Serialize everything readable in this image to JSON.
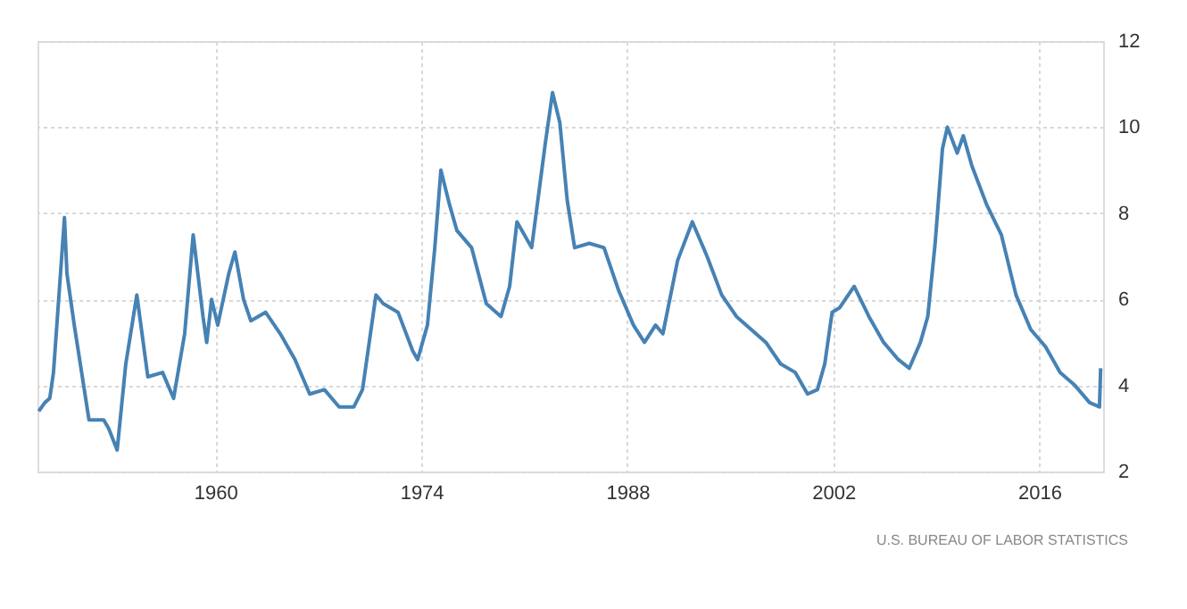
{
  "chart_data": {
    "type": "line",
    "x": [
      "1948-01",
      "1948-06",
      "1948-10",
      "1949-01",
      "1949-10",
      "1949-12",
      "1950-06",
      "1950-12",
      "1951-06",
      "1952-06",
      "1952-10",
      "1953-05",
      "1953-12",
      "1954-09",
      "1955-06",
      "1956-06",
      "1957-03",
      "1957-12",
      "1958-07",
      "1959-03",
      "1959-06",
      "1959-10",
      "1960-03",
      "1960-12",
      "1961-05",
      "1961-12",
      "1962-06",
      "1963-06",
      "1964-06",
      "1965-06",
      "1966-06",
      "1967-06",
      "1968-06",
      "1969-06",
      "1970-01",
      "1970-12",
      "1971-06",
      "1972-06",
      "1973-06",
      "1973-10",
      "1974-06",
      "1974-12",
      "1975-05",
      "1975-12",
      "1976-06",
      "1977-06",
      "1978-06",
      "1979-06",
      "1980-01",
      "1980-07",
      "1981-01",
      "1981-07",
      "1982-06",
      "1982-12",
      "1983-06",
      "1983-12",
      "1984-06",
      "1985-06",
      "1986-06",
      "1987-06",
      "1988-06",
      "1989-03",
      "1989-12",
      "1990-06",
      "1991-06",
      "1992-06",
      "1993-06",
      "1994-06",
      "1995-06",
      "1996-06",
      "1997-06",
      "1998-06",
      "1999-06",
      "2000-04",
      "2000-12",
      "2001-06",
      "2001-12",
      "2002-06",
      "2003-06",
      "2004-06",
      "2005-06",
      "2006-06",
      "2007-03",
      "2007-12",
      "2008-06",
      "2008-12",
      "2009-06",
      "2009-10",
      "2010-06",
      "2010-11",
      "2011-06",
      "2012-06",
      "2013-06",
      "2014-06",
      "2015-06",
      "2016-06",
      "2017-06",
      "2018-06",
      "2019-06",
      "2020-02",
      "2020-03"
    ],
    "series": [
      {
        "color": "#4682b4",
        "values": [
          3.4,
          3.6,
          3.7,
          4.3,
          7.9,
          6.6,
          5.4,
          4.3,
          3.2,
          3.2,
          3.0,
          2.5,
          4.5,
          6.1,
          4.2,
          4.3,
          3.7,
          5.2,
          7.5,
          5.6,
          5.0,
          6.0,
          5.4,
          6.6,
          7.1,
          6.0,
          5.5,
          5.7,
          5.2,
          4.6,
          3.8,
          3.9,
          3.5,
          3.5,
          3.9,
          6.1,
          5.9,
          5.7,
          4.8,
          4.6,
          5.4,
          7.2,
          9.0,
          8.2,
          7.6,
          7.2,
          5.9,
          5.6,
          6.3,
          7.8,
          7.5,
          7.2,
          9.6,
          10.8,
          10.1,
          8.3,
          7.2,
          7.3,
          7.2,
          6.2,
          5.4,
          5.0,
          5.4,
          5.2,
          6.9,
          7.8,
          7.0,
          6.1,
          5.6,
          5.3,
          5.0,
          4.5,
          4.3,
          3.8,
          3.9,
          4.5,
          5.7,
          5.8,
          6.3,
          5.6,
          5.0,
          4.6,
          4.4,
          5.0,
          5.6,
          7.3,
          9.5,
          10.0,
          9.4,
          9.8,
          9.1,
          8.2,
          7.5,
          6.1,
          5.3,
          4.9,
          4.3,
          4.0,
          3.6,
          3.5,
          4.4
        ]
      }
    ],
    "xlim": [
      "1947-12",
      "2020-05"
    ],
    "xticks": [
      "1960",
      "1974",
      "1988",
      "2002",
      "2016"
    ],
    "ylim": [
      2,
      12
    ],
    "yticks": [
      2,
      4,
      6,
      8,
      10,
      12
    ],
    "grid": true,
    "annotations": [
      "U.S. BUREAU OF LABOR STATISTICS"
    ]
  }
}
